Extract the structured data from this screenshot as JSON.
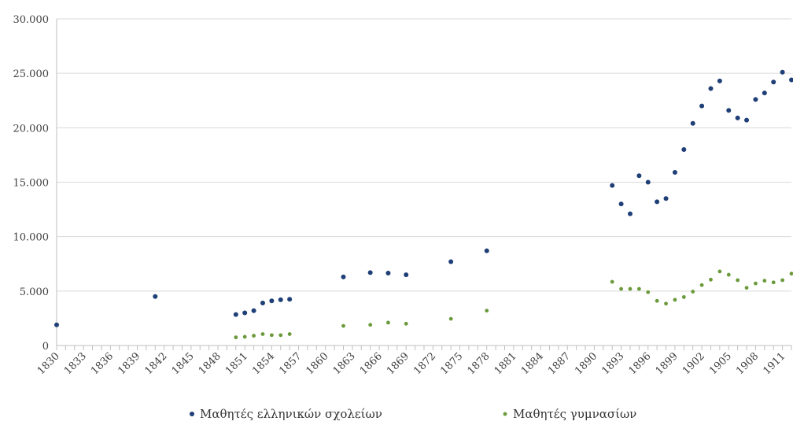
{
  "chart_data": {
    "type": "scatter",
    "title": "",
    "xlabel": "",
    "ylabel": "",
    "x_ticks": [
      "1830",
      "1833",
      "1836",
      "1839",
      "1842",
      "1845",
      "1848",
      "1851",
      "1854",
      "1857",
      "1860",
      "1863",
      "1866",
      "1869",
      "1872",
      "1875",
      "1878",
      "1881",
      "1884",
      "1887",
      "1890",
      "1893",
      "1896",
      "1899",
      "1902",
      "1905",
      "1908",
      "1911"
    ],
    "y_ticks": [
      "0",
      "5.000",
      "10.000",
      "15.000",
      "20.000",
      "25.000",
      "30.000"
    ],
    "xlim": [
      1830,
      1912
    ],
    "ylim": [
      0,
      30000
    ],
    "grid": "horizontal",
    "legend_position": "bottom",
    "series": [
      {
        "name": "Μαθητές ελληνικών σχολείων",
        "color": "#1f3f77",
        "points": [
          [
            1830,
            1900
          ],
          [
            1841,
            4500
          ],
          [
            1850,
            2850
          ],
          [
            1851,
            3000
          ],
          [
            1852,
            3200
          ],
          [
            1853,
            3900
          ],
          [
            1854,
            4100
          ],
          [
            1855,
            4200
          ],
          [
            1856,
            4250
          ],
          [
            1862,
            6300
          ],
          [
            1865,
            6700
          ],
          [
            1867,
            6650
          ],
          [
            1869,
            6500
          ],
          [
            1874,
            7700
          ],
          [
            1878,
            8700
          ],
          [
            1892,
            14700
          ],
          [
            1893,
            13000
          ],
          [
            1894,
            12100
          ],
          [
            1895,
            15600
          ],
          [
            1896,
            15000
          ],
          [
            1897,
            13200
          ],
          [
            1898,
            13500
          ],
          [
            1899,
            15900
          ],
          [
            1900,
            18000
          ],
          [
            1901,
            20400
          ],
          [
            1902,
            22000
          ],
          [
            1903,
            23600
          ],
          [
            1904,
            24300
          ],
          [
            1905,
            21600
          ],
          [
            1906,
            20900
          ],
          [
            1907,
            20700
          ],
          [
            1908,
            22600
          ],
          [
            1909,
            23200
          ],
          [
            1910,
            24200
          ],
          [
            1911,
            25100
          ],
          [
            1912,
            24400
          ]
        ]
      },
      {
        "name": "Μαθητές γυμνασίων",
        "color": "#6a9a3a",
        "points": [
          [
            1850,
            750
          ],
          [
            1851,
            800
          ],
          [
            1852,
            900
          ],
          [
            1853,
            1050
          ],
          [
            1854,
            950
          ],
          [
            1855,
            950
          ],
          [
            1856,
            1050
          ],
          [
            1862,
            1800
          ],
          [
            1865,
            1900
          ],
          [
            1867,
            2100
          ],
          [
            1869,
            2000
          ],
          [
            1874,
            2450
          ],
          [
            1878,
            3200
          ],
          [
            1892,
            5850
          ],
          [
            1893,
            5200
          ],
          [
            1894,
            5200
          ],
          [
            1895,
            5200
          ],
          [
            1896,
            4900
          ],
          [
            1897,
            4100
          ],
          [
            1898,
            3850
          ],
          [
            1899,
            4200
          ],
          [
            1900,
            4450
          ],
          [
            1901,
            4950
          ],
          [
            1902,
            5550
          ],
          [
            1903,
            6050
          ],
          [
            1904,
            6800
          ],
          [
            1905,
            6500
          ],
          [
            1906,
            6000
          ],
          [
            1907,
            5300
          ],
          [
            1908,
            5700
          ],
          [
            1909,
            5950
          ],
          [
            1910,
            5800
          ],
          [
            1911,
            6000
          ],
          [
            1912,
            6600
          ]
        ]
      }
    ]
  }
}
